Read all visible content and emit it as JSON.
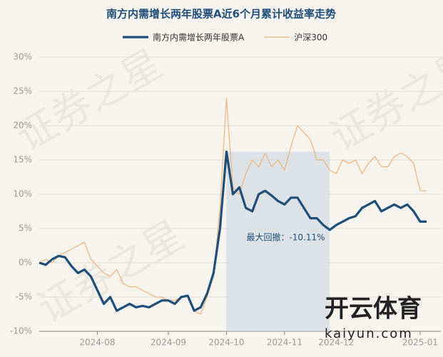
{
  "chart_data": {
    "type": "line",
    "title": "南方内需增长两年股票A近6个月累计收益率走势",
    "categories": [
      null,
      null,
      null,
      null,
      null,
      null,
      null,
      null,
      null,
      "2024-08",
      null,
      null,
      null,
      null,
      null,
      null,
      null,
      null,
      null,
      null,
      "2024-09",
      null,
      null,
      null,
      null,
      null,
      null,
      null,
      null,
      "2024-10",
      null,
      null,
      null,
      null,
      null,
      null,
      null,
      null,
      "2024-11",
      null,
      null,
      null,
      null,
      null,
      null,
      null,
      "2024-12",
      null,
      null,
      null,
      null,
      null,
      null,
      null,
      null,
      null,
      null,
      null,
      null,
      "2025-01",
      null
    ],
    "series": [
      {
        "name": "南方内需增长两年股票A",
        "color": "#1f4e79",
        "width": 3.2,
        "values": [
          0,
          -0.3,
          0.5,
          1,
          0.8,
          -0.5,
          -1.5,
          -1,
          -2,
          -4,
          -6,
          -5,
          -7,
          -6.5,
          -6,
          -6.5,
          -6.3,
          -6.5,
          -6,
          -5.5,
          -5.5,
          -6,
          -5,
          -4.8,
          -7,
          -6.5,
          -4.5,
          -1.5,
          5,
          16.2,
          10,
          11,
          8,
          7.5,
          10,
          10.5,
          9.8,
          9,
          8.5,
          9.5,
          9.5,
          8,
          6.5,
          6.5,
          5.5,
          4.8,
          5.5,
          6,
          6.5,
          6.8,
          8,
          8.5,
          9,
          7.5,
          8,
          8.5,
          8,
          8.5,
          7.5,
          6,
          6
        ]
      },
      {
        "name": "沪深300",
        "color": "#f0b27a",
        "width": 1.2,
        "values": [
          0,
          0.5,
          0,
          1,
          1.5,
          2,
          2.5,
          3,
          0.5,
          -0.5,
          -1.5,
          -2,
          -1,
          -3,
          -3.5,
          -3.5,
          -4,
          -4.5,
          -5,
          -5,
          -5.5,
          -5.5,
          -5,
          -5,
          -7,
          -7.5,
          -5,
          -2,
          8,
          24,
          11,
          10,
          13,
          15,
          14,
          16,
          14,
          15,
          13.5,
          17,
          20,
          19,
          18,
          15,
          15,
          13.5,
          13,
          15,
          14.5,
          15,
          13,
          14.5,
          15.5,
          14,
          14,
          15.5,
          16,
          15.5,
          14.5,
          10.5,
          10.5
        ]
      }
    ],
    "ylim": [
      -10,
      30
    ],
    "yticks": [
      {
        "value": -10,
        "label": "-10%"
      },
      {
        "value": -5,
        "label": "-5%"
      },
      {
        "value": 0,
        "label": "0%"
      },
      {
        "value": 5,
        "label": "5%"
      },
      {
        "value": 10,
        "label": "10%"
      },
      {
        "value": 15,
        "label": "15%"
      },
      {
        "value": 20,
        "label": "20%"
      },
      {
        "value": 25,
        "label": "25%"
      },
      {
        "value": 30,
        "label": "30%"
      }
    ],
    "grid": true,
    "annotation": "最大回撤：-10.11%",
    "watermarks": [
      "证券之星",
      "开云体育",
      "kaiyun.com"
    ]
  }
}
